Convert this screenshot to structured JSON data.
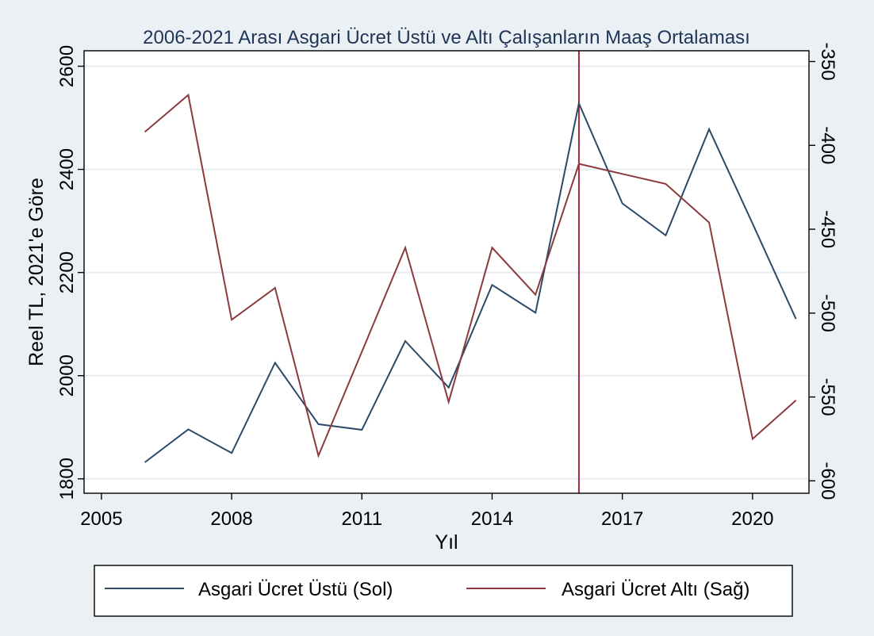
{
  "chart_data": {
    "type": "line",
    "title": "2006-2021 Arası Asgari Ücret Üstü ve Altı Çalışanların Maaş Ortalaması",
    "xlabel": "Yıl",
    "ylabel": "Reel TL, 2021'e Göre",
    "y2label": "",
    "x": [
      2006,
      2007,
      2008,
      2009,
      2010,
      2011,
      2012,
      2013,
      2014,
      2015,
      2016,
      2017,
      2018,
      2019,
      2020,
      2021
    ],
    "xlim": [
      2004.6,
      2021.3
    ],
    "xticks": [
      2005,
      2008,
      2011,
      2014,
      2017,
      2020
    ],
    "ylim": [
      1772,
      2630
    ],
    "yticks": [
      1800,
      2000,
      2200,
      2400,
      2600
    ],
    "y2lim": [
      -607.4,
      -343.6
    ],
    "y2ticks": [
      -350,
      -400,
      -450,
      -500,
      -550,
      -600
    ],
    "grid": true,
    "legend_position": "bottom",
    "vline": {
      "x": 2016,
      "color": "#a52a3a"
    },
    "series": [
      {
        "name": "Asgari Ücret Üstü (Sol)",
        "axis": "left",
        "color": "#2c4a68",
        "values": [
          1832,
          1896,
          1850,
          2025,
          1906,
          1895,
          2067,
          1977,
          2176,
          2122,
          2528,
          2334,
          2272,
          2478,
          2295,
          2110
        ]
      },
      {
        "name": "Asgari Ücret Altı (Sağ)",
        "axis": "right",
        "color": "#8b3a3e",
        "values": [
          -392,
          -370,
          -504,
          -485,
          -585,
          -523,
          -461,
          -553,
          -461,
          -489,
          -411,
          -417,
          -423,
          -446,
          -575,
          -552
        ]
      }
    ]
  }
}
